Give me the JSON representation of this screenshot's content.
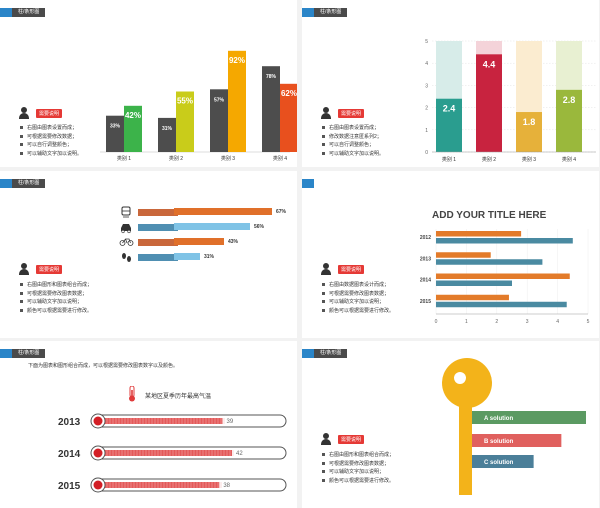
{
  "s1": {
    "header": "柱/条形图",
    "badge": "需要说明",
    "bullets": [
      "右图由图表设置而成；",
      "可根据需要修改数据；",
      "可以自行调整颜色；",
      "可以辅助文字加以说明。"
    ],
    "chart_data": {
      "type": "bar",
      "categories": [
        "类别 1",
        "类别 2",
        "类别 3",
        "类别 4"
      ],
      "series": [
        {
          "values": [
            33,
            31,
            57,
            78
          ],
          "labels": [
            "33%",
            "31%",
            "57%",
            "78%"
          ],
          "color": "#4d4d4d"
        },
        {
          "values": [
            42,
            55,
            92,
            62
          ],
          "labels": [
            "42%",
            "55%",
            "92%",
            "62%"
          ],
          "colors": [
            "#3cb34a",
            "#c9cc1a",
            "#f5a800",
            "#e8501e"
          ]
        }
      ],
      "ylim": [
        0,
        100
      ]
    }
  },
  "s2": {
    "header": "柱/条形图",
    "badge": "需要说明",
    "bullets": [
      "右图由图表设置而成；",
      "修改数据注意匿系列2；",
      "可以自行调整颜色；",
      "可以辅助文字加以说明。"
    ],
    "chart_data": {
      "type": "bar",
      "categories": [
        "类别 1",
        "类别 2",
        "类别 3",
        "类别 4"
      ],
      "values": [
        2.4,
        4.4,
        1.8,
        2.8
      ],
      "labels": [
        "2.4",
        "4.4",
        "1.8",
        "2.8"
      ],
      "colors": [
        "#2a9d8f",
        "#c8233f",
        "#e6b13a",
        "#9ab83c"
      ],
      "bg_colors": [
        "#d7ece9",
        "#f4d3d9",
        "#fbecd0",
        "#e8f0d2"
      ],
      "ylim": [
        0,
        5
      ],
      "yticks": [
        0,
        1,
        2,
        3,
        4,
        5
      ]
    }
  },
  "s3": {
    "header": "柱/条形图",
    "badge": "需要说明",
    "bullets": [
      "右图由图形和图表组合而成；",
      "可根据需要修改图表数据；",
      "可以辅助文字加以说明；",
      "颜色可以根据需要进行修改。"
    ],
    "chart_data": {
      "type": "bar",
      "orientation": "horizontal",
      "icons": [
        "train-icon",
        "car-icon",
        "bicycle-icon",
        "footprints-icon"
      ],
      "values": [
        67,
        56,
        43,
        31
      ],
      "labels": [
        "67%",
        "56%",
        "43%",
        "31%"
      ],
      "colors": [
        "#e0702a",
        "#7fc3e6",
        "#e0702a",
        "#7fc3e6"
      ]
    }
  },
  "s4": {
    "title": "ADD YOUR TITLE HERE",
    "badge": "需要说明",
    "bullets": [
      "右图由数据图表设计而成；",
      "可根据需要修改图表数据；",
      "可以辅助文字加以说明；",
      "颜色可以根据需要进行修改。"
    ],
    "chart_data": {
      "type": "bar",
      "orientation": "horizontal",
      "categories": [
        "2012",
        "2013",
        "2014",
        "2015"
      ],
      "series": [
        {
          "color": "#e37b2a",
          "values": [
            2.8,
            1.8,
            4.4,
            2.4
          ]
        },
        {
          "color": "#4a8aa1",
          "values": [
            4.5,
            3.5,
            2.5,
            4.3
          ]
        }
      ],
      "xlim": [
        0,
        5
      ],
      "xticks": [
        "0",
        "1",
        "2",
        "3",
        "4",
        "5"
      ]
    }
  },
  "s5": {
    "header": "柱/条形图",
    "intro": "下面为图表和图形组合而成，可以根据需要修改图表数字以及颜色。",
    "chart_title": "某地区夏季历年最高气温",
    "chart_data": {
      "type": "bar",
      "orientation": "horizontal",
      "categories": [
        "2013",
        "2014",
        "2015"
      ],
      "values": [
        39,
        42,
        38
      ],
      "labels": [
        "39",
        "42",
        "38"
      ],
      "xlim": [
        0,
        60
      ],
      "color": "#e35a5a"
    }
  },
  "s6": {
    "header": "柱/条形图",
    "badge": "需要说明",
    "bullets": [
      "右图由图形和图表组合而成；",
      "可根据需要修改图表数据；",
      "可以辅助文字加以说明；",
      "颜色可以根据需要进行修改。"
    ],
    "chart_data": {
      "type": "bar",
      "orientation": "horizontal",
      "categories": [
        "A solution",
        "B solution",
        "C solution"
      ],
      "values": [
        3.7,
        2.9,
        2.0
      ],
      "xlim": [
        0,
        3.7
      ],
      "colors": [
        "#5b9a62",
        "#e0605e",
        "#4b7f99"
      ]
    }
  }
}
